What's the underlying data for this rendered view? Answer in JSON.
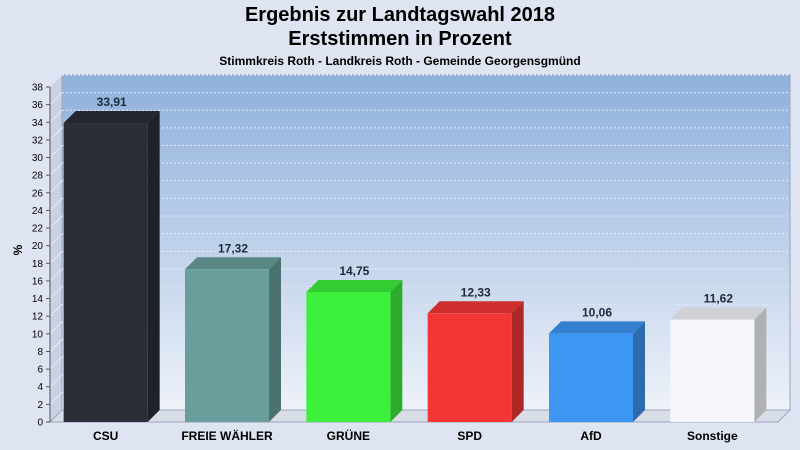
{
  "header": {
    "title_line1": "Ergebnis zur Landtagswahl 2018",
    "title_line2": "Erststimmen in Prozent",
    "subtitle": "Stimmkreis Roth - Landkreis Roth - Gemeinde Georgensgmünd"
  },
  "chart_data": {
    "type": "bar",
    "title": "Ergebnis zur Landtagswahl 2018 — Erststimmen in Prozent",
    "subtitle": "Stimmkreis Roth - Landkreis Roth - Gemeinde Georgensgmünd",
    "xlabel": "",
    "ylabel": "%",
    "ylim": [
      0,
      38
    ],
    "ytick_step": 2,
    "grid": true,
    "categories": [
      "CSU",
      "FREIE WÄHLER",
      "GRÜNE",
      "SPD",
      "AfD",
      "Sonstige"
    ],
    "values": [
      33.91,
      17.32,
      14.75,
      12.33,
      10.06,
      11.62
    ],
    "value_labels": [
      "33,91",
      "17,32",
      "14,75",
      "12,33",
      "10,06",
      "11,62"
    ],
    "colors": [
      "#2b2e37",
      "#6a9e9c",
      "#3cf03c",
      "#f23636",
      "#3d96f2",
      "#f4f6fa"
    ]
  }
}
